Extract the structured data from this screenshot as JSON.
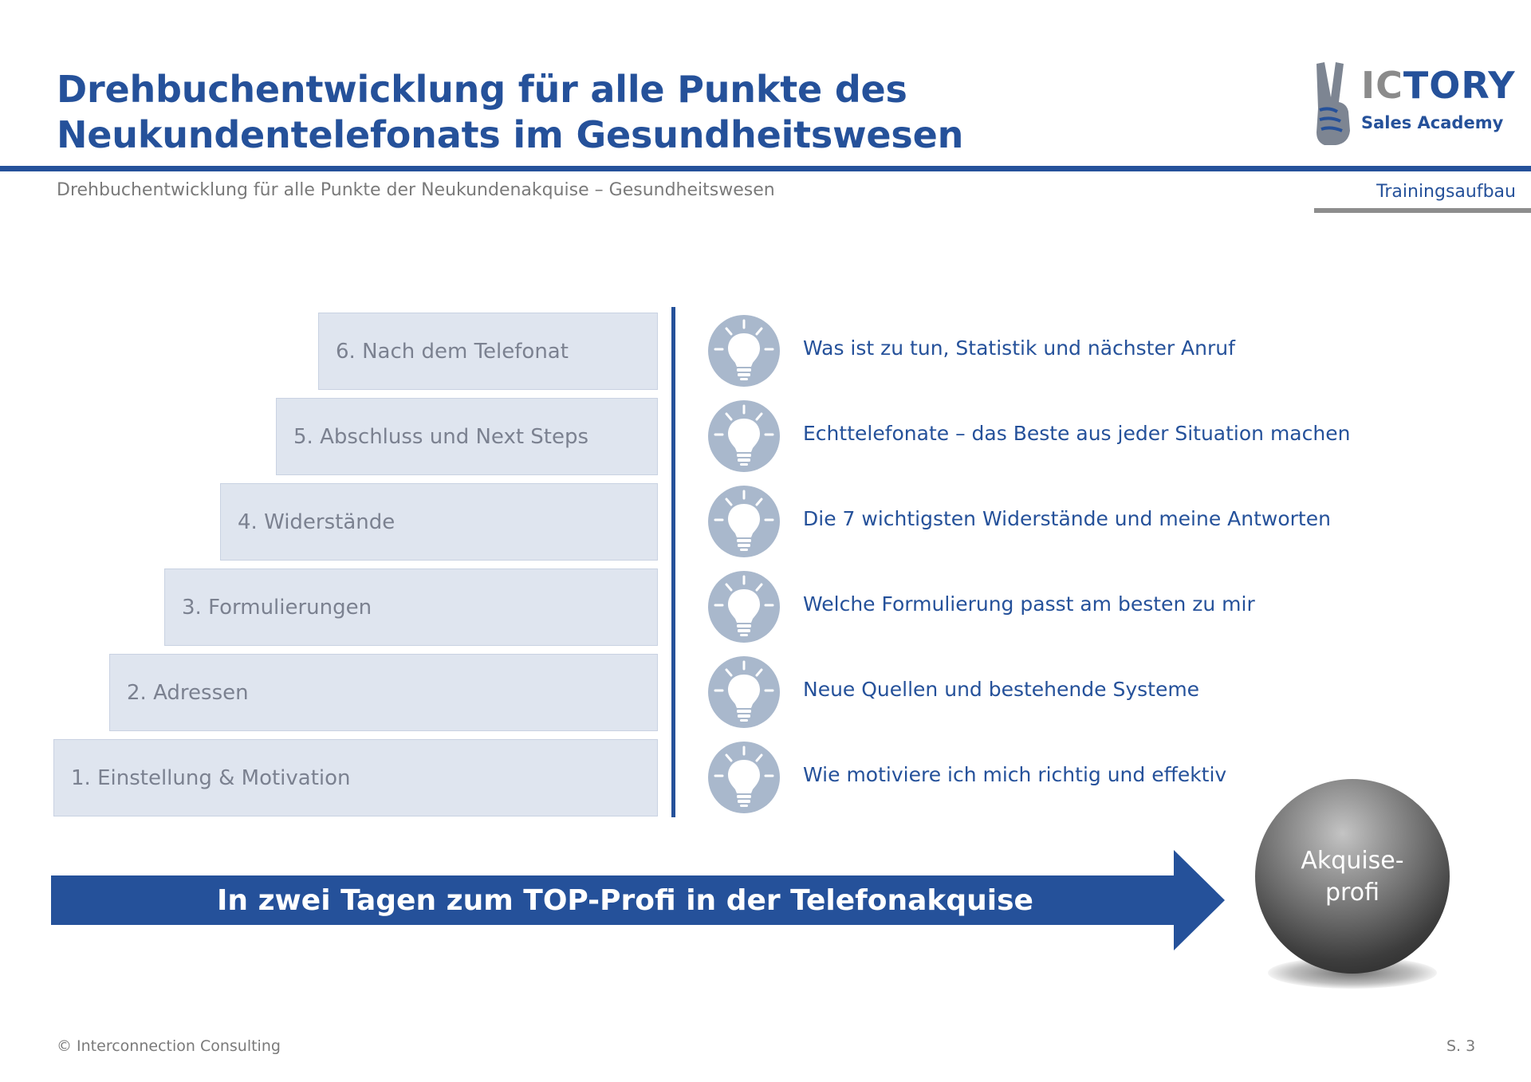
{
  "header": {
    "title_line1": "Drehbuchentwicklung für alle Punkte des",
    "title_line2": "Neukundentelefonats im Gesundheitswesen",
    "subtitle": "Drehbuchentwicklung für alle Punkte der Neukundenakquise – Gesundheitswesen",
    "section_tag": "Trainingsaufbau"
  },
  "logo": {
    "word_ic": "IC",
    "word_tory": "TORY",
    "sub": "Sales Academy",
    "icon": "victory-hand-icon"
  },
  "steps": [
    {
      "label": "6. Nach dem Telefonat"
    },
    {
      "label": "5. Abschluss und Next Steps"
    },
    {
      "label": "4. Widerstände"
    },
    {
      "label": "3. Formulierungen"
    },
    {
      "label": "2. Adressen"
    },
    {
      "label": "1. Einstellung & Motivation"
    }
  ],
  "items": [
    {
      "icon": "lightbulb-icon",
      "text": "Was ist zu tun, Statistik und nächster Anruf"
    },
    {
      "icon": "lightbulb-icon",
      "text": "Echttelefonate – das Beste aus jeder Situation machen"
    },
    {
      "icon": "lightbulb-icon",
      "text": "Die 7 wichtigsten Widerstände und meine Antworten"
    },
    {
      "icon": "lightbulb-icon",
      "text": "Welche Formulierung passt am besten zu mir"
    },
    {
      "icon": "lightbulb-icon",
      "text": "Neue Quellen und bestehende Systeme"
    },
    {
      "icon": "lightbulb-icon",
      "text": "Wie motiviere ich mich richtig und effektiv"
    }
  ],
  "arrow": {
    "text": "In zwei Tagen zum TOP-Profi in der Telefonakquise"
  },
  "sphere": {
    "line1": "Akquise-",
    "line2": "profi"
  },
  "footer": {
    "copyright": "© Interconnection Consulting",
    "page": "S. 3"
  },
  "colors": {
    "brand": "#25519a",
    "step_fill": "#dfe5ef",
    "bulb_fill": "#a9b8cc",
    "muted": "#7a7a7a"
  }
}
